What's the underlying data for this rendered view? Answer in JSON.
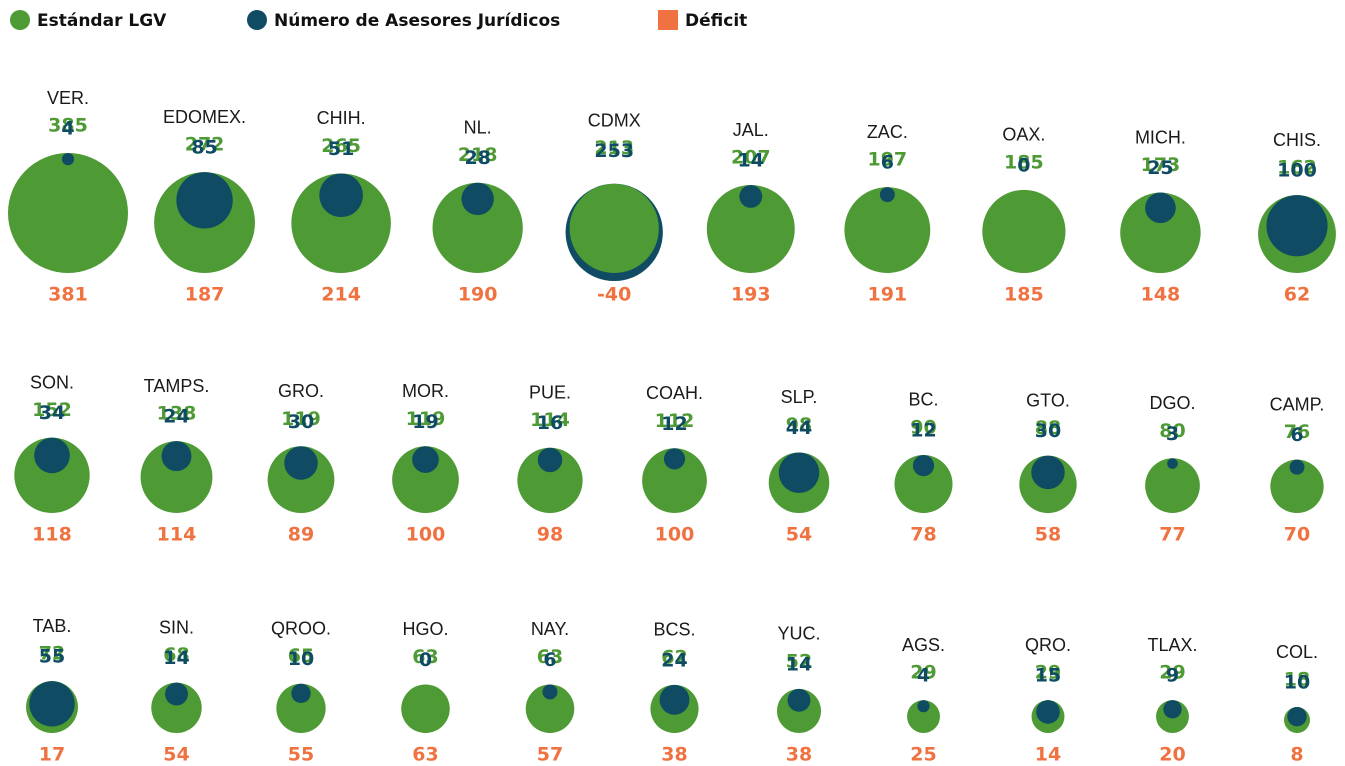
{
  "chart_data": {
    "type": "bubble",
    "categories": [
      "VER.",
      "EDOMEX.",
      "CHIH.",
      "NL.",
      "CDMX",
      "JAL.",
      "ZAC.",
      "OAX.",
      "MICH.",
      "CHIS.",
      "SON.",
      "TAMPS.",
      "GRO.",
      "MOR.",
      "PUE.",
      "COAH.",
      "SLP.",
      "BC.",
      "GTO.",
      "DGO.",
      "CAMP.",
      "TAB.",
      "SIN.",
      "QROO.",
      "HGO.",
      "NAY.",
      "BCS.",
      "YUC.",
      "AGS.",
      "QRO.",
      "TLAX.",
      "COL."
    ],
    "series": [
      {
        "name": "Estándar LGV",
        "color": "#4e9a35",
        "values": [
          385,
          272,
          265,
          218,
          213,
          207,
          197,
          185,
          173,
          162,
          152,
          138,
          119,
          119,
          114,
          112,
          98,
          90,
          88,
          80,
          76,
          72,
          68,
          65,
          63,
          63,
          62,
          52,
          29,
          29,
          29,
          18
        ]
      },
      {
        "name": "Número de Asesores Jurídicos",
        "color": "#0f4c63",
        "values": [
          4,
          85,
          51,
          28,
          253,
          14,
          6,
          0,
          25,
          100,
          34,
          24,
          30,
          19,
          16,
          12,
          44,
          12,
          30,
          3,
          6,
          55,
          14,
          10,
          0,
          6,
          24,
          14,
          4,
          15,
          9,
          10
        ]
      },
      {
        "name": "Déficit",
        "color": "#f07241",
        "values": [
          381,
          187,
          214,
          190,
          -40,
          193,
          191,
          185,
          148,
          62,
          118,
          114,
          89,
          100,
          98,
          100,
          54,
          78,
          58,
          77,
          70,
          17,
          54,
          55,
          63,
          57,
          38,
          38,
          25,
          14,
          20,
          8
        ]
      }
    ]
  }
}
